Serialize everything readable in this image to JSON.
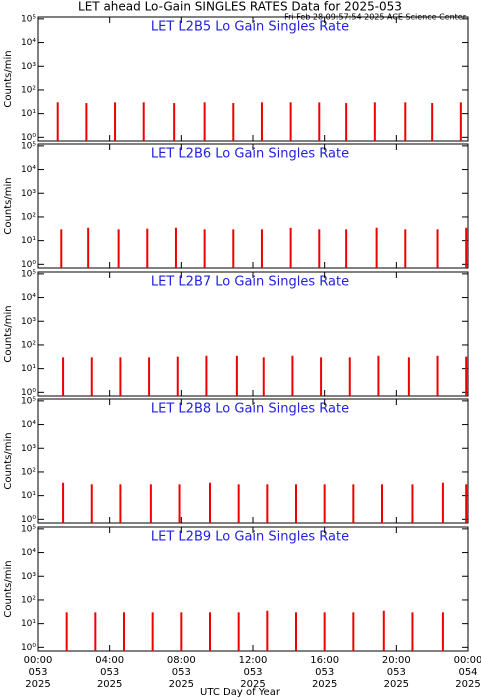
{
  "header": {
    "title": "LET ahead Lo-Gain SINGLES RATES Data for 2025-053",
    "timestamp": "Fri Feb 28 09:57:54 2025 ACE Science Center"
  },
  "xlabel": "UTC Day of Year",
  "ylabel": "Counts/min",
  "xticks": [
    {
      "value": 0,
      "label": "00:00",
      "day": "053",
      "year": "2025"
    },
    {
      "value": 4,
      "label": "04:00",
      "day": "053",
      "year": "2025"
    },
    {
      "value": 8,
      "label": "08:00",
      "day": "053",
      "year": "2025"
    },
    {
      "value": 12,
      "label": "12:00",
      "day": "053",
      "year": "2025"
    },
    {
      "value": 16,
      "label": "16:00",
      "day": "053",
      "year": "2025"
    },
    {
      "value": 20,
      "label": "20:00",
      "day": "053",
      "year": "2025"
    },
    {
      "value": 24,
      "label": "00:00",
      "day": "054",
      "year": "2025"
    }
  ],
  "xlim": [
    0,
    24
  ],
  "chart_data": [
    {
      "type": "spike",
      "title": "LET L2B5 Lo Gain Singles Rate",
      "color": "#ee0000",
      "log_y": true,
      "ylim": [
        0.7,
        120000
      ],
      "yticks": [
        {
          "value": 1,
          "label": "10⁰"
        },
        {
          "value": 10,
          "label": "10¹"
        },
        {
          "value": 100,
          "label": "10²"
        },
        {
          "value": 1000,
          "label": "10³"
        },
        {
          "value": 10000,
          "label": "10⁴"
        },
        {
          "value": 100000,
          "label": "10⁵"
        }
      ],
      "x": [
        1.1,
        2.7,
        4.3,
        5.9,
        7.6,
        9.3,
        10.9,
        12.5,
        14.1,
        15.7,
        17.2,
        18.8,
        20.5,
        22.0,
        23.6
      ],
      "values": [
        30,
        28,
        30,
        30,
        28,
        30,
        28,
        30,
        30,
        30,
        28,
        30,
        30,
        28,
        30
      ]
    },
    {
      "type": "spike",
      "title": "LET L2B6 Lo Gain Singles Rate",
      "color": "#ee0000",
      "log_y": true,
      "ylim": [
        0.7,
        120000
      ],
      "yticks": [
        {
          "value": 1,
          "label": "10⁰"
        },
        {
          "value": 10,
          "label": "10¹"
        },
        {
          "value": 100,
          "label": "10²"
        },
        {
          "value": 1000,
          "label": "10³"
        },
        {
          "value": 10000,
          "label": "10⁴"
        },
        {
          "value": 100000,
          "label": "10⁵"
        }
      ],
      "x": [
        1.3,
        2.8,
        4.5,
        6.1,
        7.7,
        9.3,
        10.9,
        12.5,
        14.1,
        15.7,
        17.2,
        18.9,
        20.5,
        22.3,
        23.9
      ],
      "values": [
        30,
        35,
        30,
        32,
        35,
        30,
        30,
        30,
        35,
        30,
        30,
        35,
        30,
        30,
        35
      ]
    },
    {
      "type": "spike",
      "title": "LET L2B7 Lo Gain Singles Rate",
      "color": "#ee0000",
      "log_y": true,
      "ylim": [
        0.7,
        120000
      ],
      "yticks": [
        {
          "value": 1,
          "label": "10⁰"
        },
        {
          "value": 10,
          "label": "10¹"
        },
        {
          "value": 100,
          "label": "10²"
        },
        {
          "value": 1000,
          "label": "10³"
        },
        {
          "value": 10000,
          "label": "10⁴"
        },
        {
          "value": 100000,
          "label": "10⁵"
        }
      ],
      "x": [
        1.4,
        3.0,
        4.6,
        6.2,
        7.8,
        9.4,
        11.1,
        12.6,
        14.2,
        15.8,
        17.4,
        19.0,
        20.7,
        22.3,
        23.9
      ],
      "values": [
        30,
        30,
        30,
        30,
        32,
        35,
        35,
        30,
        35,
        30,
        30,
        35,
        30,
        35,
        32
      ]
    },
    {
      "type": "spike",
      "title": "LET L2B8 Lo Gain Singles Rate",
      "color": "#ee0000",
      "log_y": true,
      "ylim": [
        0.7,
        120000
      ],
      "yticks": [
        {
          "value": 1,
          "label": "10⁰"
        },
        {
          "value": 10,
          "label": "10¹"
        },
        {
          "value": 100,
          "label": "10²"
        },
        {
          "value": 1000,
          "label": "10³"
        },
        {
          "value": 10000,
          "label": "10⁴"
        },
        {
          "value": 100000,
          "label": "10⁵"
        }
      ],
      "x": [
        1.4,
        3.0,
        4.6,
        6.3,
        7.9,
        9.6,
        11.2,
        12.8,
        14.4,
        16.0,
        17.6,
        19.2,
        20.9,
        22.6,
        23.9
      ],
      "values": [
        35,
        30,
        30,
        30,
        30,
        35,
        30,
        30,
        30,
        30,
        30,
        30,
        30,
        35,
        30
      ]
    },
    {
      "type": "spike",
      "title": "LET L2B9 Lo Gain Singles Rate",
      "color": "#ee0000",
      "log_y": true,
      "ylim": [
        0.7,
        120000
      ],
      "yticks": [
        {
          "value": 1,
          "label": "10⁰"
        },
        {
          "value": 10,
          "label": "10¹"
        },
        {
          "value": 100,
          "label": "10²"
        },
        {
          "value": 1000,
          "label": "10³"
        },
        {
          "value": 10000,
          "label": "10⁴"
        },
        {
          "value": 100000,
          "label": "10⁵"
        }
      ],
      "x": [
        1.6,
        3.2,
        4.8,
        6.4,
        8.0,
        9.6,
        11.2,
        12.8,
        14.4,
        16.0,
        17.6,
        19.3,
        20.9,
        22.6
      ],
      "values": [
        30,
        30,
        30,
        30,
        30,
        30,
        30,
        35,
        30,
        30,
        30,
        35,
        30,
        30
      ]
    }
  ]
}
